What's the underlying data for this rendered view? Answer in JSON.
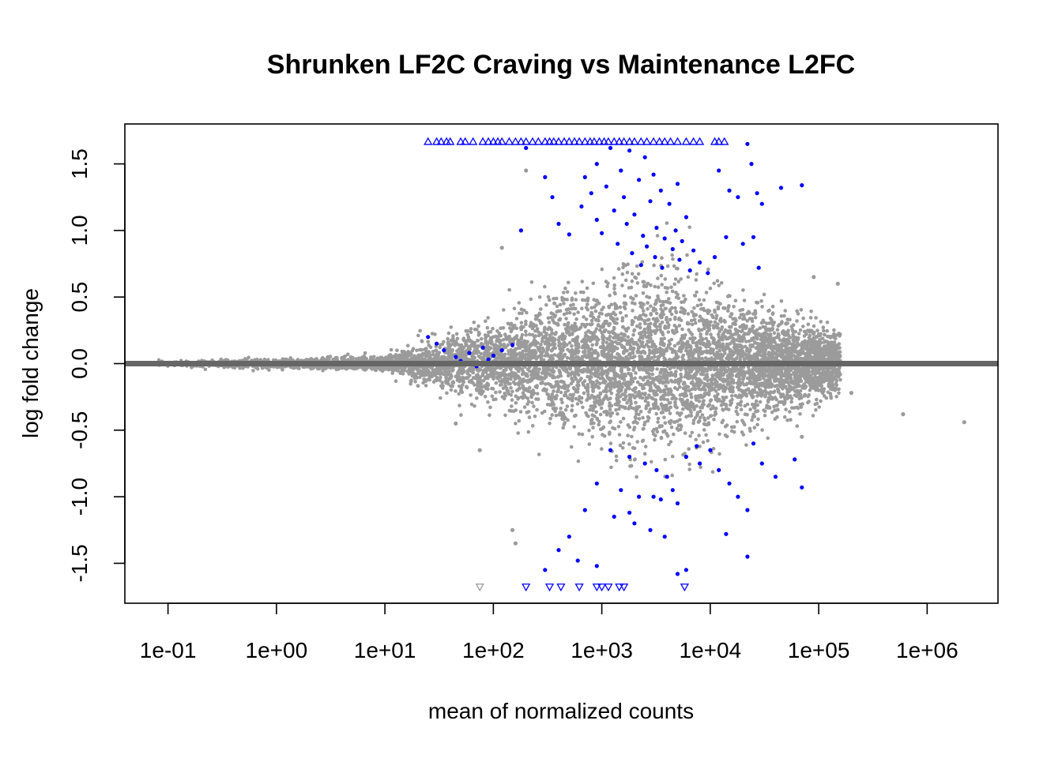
{
  "chart_data": {
    "type": "scatter",
    "title": "Shrunken LF2C Craving vs Maintenance L2FC",
    "xlabel": "mean of normalized counts",
    "ylabel": "log fold change",
    "x_scale": "log10",
    "xlim": [
      0.04,
      4500000
    ],
    "ylim": [
      -1.8,
      1.8
    ],
    "x_ticks": [
      {
        "value": 0.1,
        "label": "1e-01"
      },
      {
        "value": 1,
        "label": "1e+00"
      },
      {
        "value": 10,
        "label": "1e+01"
      },
      {
        "value": 100,
        "label": "1e+02"
      },
      {
        "value": 1000,
        "label": "1e+03"
      },
      {
        "value": 10000,
        "label": "1e+04"
      },
      {
        "value": 100000,
        "label": "1e+05"
      },
      {
        "value": 1000000,
        "label": "1e+06"
      }
    ],
    "y_ticks": [
      {
        "value": -1.5,
        "label": "-1.5"
      },
      {
        "value": -1.0,
        "label": "-1.0"
      },
      {
        "value": -0.5,
        "label": "-0.5"
      },
      {
        "value": 0.0,
        "label": "0.0"
      },
      {
        "value": 0.5,
        "label": "0.5"
      },
      {
        "value": 1.0,
        "label": "1.0"
      },
      {
        "value": 1.5,
        "label": "1.5"
      }
    ],
    "reference_line": {
      "y": 0,
      "color": "#666666"
    },
    "colors": {
      "not_significant": "#9b9b9b",
      "significant": "#0000ff"
    },
    "series": [
      {
        "values": [
          [
            1200,
            1.62
          ],
          [
            1800,
            1.6
          ],
          [
            2500,
            1.55
          ],
          [
            900,
            1.5
          ],
          [
            1500,
            1.45
          ],
          [
            3000,
            1.42
          ],
          [
            700,
            1.4
          ],
          [
            2200,
            1.38
          ],
          [
            5000,
            1.35
          ],
          [
            1100,
            1.33
          ],
          [
            3500,
            1.3
          ],
          [
            800,
            1.28
          ],
          [
            1600,
            1.25
          ],
          [
            2800,
            1.22
          ],
          [
            4200,
            1.2
          ],
          [
            650,
            1.18
          ],
          [
            1300,
            1.15
          ],
          [
            2000,
            1.12
          ],
          [
            6000,
            1.1
          ],
          [
            900,
            1.08
          ],
          [
            1700,
            1.05
          ],
          [
            3200,
            1.02
          ],
          [
            4800,
            1.0
          ],
          [
            1000,
            0.98
          ],
          [
            2400,
            0.96
          ],
          [
            3800,
            0.94
          ],
          [
            5500,
            0.92
          ],
          [
            1400,
            0.9
          ],
          [
            2600,
            0.88
          ],
          [
            4500,
            0.86
          ],
          [
            7000,
            0.85
          ],
          [
            1900,
            0.83
          ],
          [
            3100,
            0.8
          ],
          [
            5200,
            0.78
          ],
          [
            8000,
            0.76
          ],
          [
            2300,
            0.74
          ],
          [
            3600,
            0.72
          ],
          [
            6500,
            0.7
          ],
          [
            9500,
            0.68
          ],
          [
            12000,
            1.45
          ],
          [
            15000,
            1.3
          ],
          [
            18000,
            1.25
          ],
          [
            22000,
            1.65
          ],
          [
            24000,
            1.5
          ],
          [
            27000,
            1.28
          ],
          [
            30000,
            1.2
          ],
          [
            25000,
            0.95
          ],
          [
            20000,
            0.9
          ],
          [
            14000,
            0.95
          ],
          [
            11000,
            0.8
          ],
          [
            45000,
            1.32
          ],
          [
            70000,
            1.34
          ],
          [
            28000,
            0.72
          ],
          [
            200,
            1.62
          ],
          [
            300,
            1.4
          ],
          [
            350,
            1.25
          ],
          [
            180,
            1.0
          ],
          [
            400,
            1.05
          ],
          [
            500,
            0.97
          ],
          [
            25,
            0.2
          ],
          [
            30,
            0.15
          ],
          [
            35,
            0.1
          ],
          [
            45,
            0.05
          ],
          [
            60,
            0.08
          ],
          [
            80,
            0.12
          ],
          [
            100,
            0.06
          ],
          [
            120,
            0.1
          ],
          [
            150,
            0.14
          ],
          [
            50,
            0.02
          ],
          [
            70,
            -0.02
          ],
          [
            90,
            0.03
          ],
          [
            1200,
            -0.65
          ],
          [
            1800,
            -0.7
          ],
          [
            2500,
            -0.75
          ],
          [
            3200,
            -0.8
          ],
          [
            4000,
            -0.85
          ],
          [
            900,
            -0.9
          ],
          [
            1500,
            -0.95
          ],
          [
            2200,
            -1.0
          ],
          [
            3500,
            -1.02
          ],
          [
            5000,
            -1.05
          ],
          [
            700,
            -1.1
          ],
          [
            1300,
            -1.15
          ],
          [
            2000,
            -1.2
          ],
          [
            2800,
            -1.25
          ],
          [
            6000,
            -0.7
          ],
          [
            8000,
            -0.75
          ],
          [
            10000,
            -0.65
          ],
          [
            12000,
            -0.8
          ],
          [
            15000,
            -0.9
          ],
          [
            18000,
            -1.0
          ],
          [
            22000,
            -1.1
          ],
          [
            25000,
            -0.6
          ],
          [
            30000,
            -0.75
          ],
          [
            40000,
            -0.85
          ],
          [
            60000,
            -0.72
          ],
          [
            70000,
            -0.93
          ],
          [
            400,
            -1.4
          ],
          [
            600,
            -1.48
          ],
          [
            900,
            -1.52
          ],
          [
            300,
            -1.55
          ],
          [
            5000,
            -1.58
          ],
          [
            6000,
            -1.55
          ],
          [
            22000,
            -1.45
          ],
          [
            14000,
            -1.28
          ],
          [
            500,
            -1.3
          ],
          [
            1800,
            -1.12
          ],
          [
            3800,
            -1.3
          ],
          [
            3000,
            -1.0
          ],
          [
            7500,
            -0.62
          ],
          [
            4500,
            -0.95
          ]
        ],
        "color": "#0000ff"
      },
      {
        "values": [
          [
            0.08,
            0.0
          ],
          [
            0.3,
            0.01
          ],
          [
            1,
            -0.01
          ],
          [
            3,
            0.02
          ],
          [
            10,
            -0.03
          ],
          [
            30,
            0.05
          ],
          [
            100,
            -0.1
          ],
          [
            300,
            0.2
          ],
          [
            1000,
            -0.3
          ],
          [
            3000,
            0.4
          ],
          [
            10000,
            -0.2
          ],
          [
            30000,
            0.15
          ],
          [
            100000,
            -0.2
          ],
          [
            200000,
            -0.22
          ],
          [
            600000,
            -0.38
          ],
          [
            2200000,
            -0.44
          ],
          [
            150000,
            0.6
          ],
          [
            90000,
            0.65
          ],
          [
            70000,
            -0.55
          ],
          [
            50000,
            0.3
          ],
          [
            75,
            -0.65
          ],
          [
            120,
            0.87
          ],
          [
            200,
            1.45
          ],
          [
            45,
            -0.45
          ],
          [
            150,
            -1.25
          ],
          [
            160,
            -1.35
          ]
        ],
        "color": "#9b9b9b"
      }
    ],
    "out_of_range": {
      "top": [
        25,
        30,
        33,
        37,
        40,
        50,
        55,
        65,
        80,
        90,
        100,
        110,
        120,
        140,
        160,
        180,
        200,
        230,
        260,
        300,
        330,
        360,
        400,
        450,
        500,
        560,
        620,
        700,
        780,
        850,
        950,
        1050,
        1150,
        1300,
        1450,
        1600,
        1800,
        2000,
        2300,
        2600,
        3000,
        3400,
        3800,
        4300,
        5000,
        6000,
        7000,
        8000,
        11000,
        12000,
        13500
      ],
      "bottom": [
        {
          "x": 75,
          "significant": false
        },
        {
          "x": 200,
          "significant": true
        },
        {
          "x": 330,
          "significant": true
        },
        {
          "x": 420,
          "significant": true
        },
        {
          "x": 620,
          "significant": true
        },
        {
          "x": 900,
          "significant": true
        },
        {
          "x": 1000,
          "significant": true
        },
        {
          "x": 1150,
          "significant": true
        },
        {
          "x": 1450,
          "significant": true
        },
        {
          "x": 1600,
          "significant": true
        },
        {
          "x": 5800,
          "significant": true
        }
      ]
    }
  }
}
